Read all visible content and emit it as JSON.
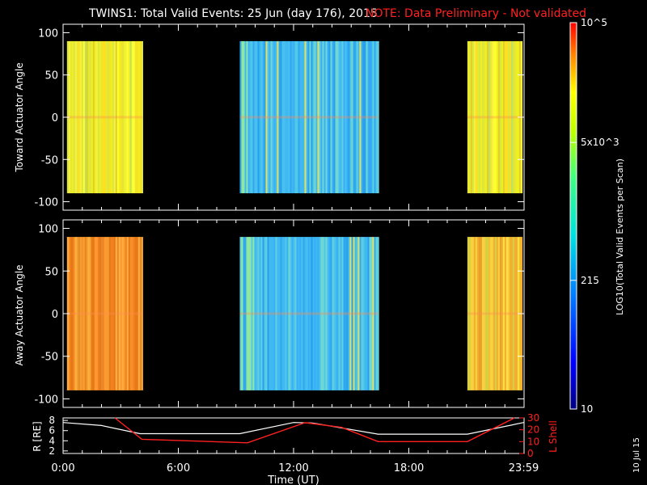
{
  "header": {
    "title": "TWINS1: Total Valid Events: 25 Jun (day 176), 2015",
    "note": "NOTE: Data Preliminary - Not validated"
  },
  "side_date": "10 Jul 15",
  "colors": {
    "note": "#ff2020",
    "l_shell_line": "#ff2020",
    "r_line": "#ffffff",
    "background": "#000000"
  },
  "chart_data": [
    {
      "type": "heatmap",
      "title": "",
      "ylabel": "Toward Actuator Angle",
      "ylim": [
        -110,
        110
      ],
      "yticks": [
        "100",
        "50",
        "0",
        "-50",
        "-100"
      ],
      "xlim": [
        0,
        24
      ],
      "data_blocks": [
        {
          "start": 0.2,
          "end": 4.15,
          "level": "yellow"
        },
        {
          "start": 9.2,
          "end": 16.4,
          "level": "cyan-blue"
        },
        {
          "start": 21.05,
          "end": 23.85,
          "level": "yellow"
        }
      ],
      "angle_range": [
        -90,
        90
      ]
    },
    {
      "type": "heatmap",
      "title": "",
      "ylabel": "Away Actuator Angle",
      "ylim": [
        -110,
        110
      ],
      "yticks": [
        "100",
        "50",
        "0",
        "-50",
        "-100"
      ],
      "xlim": [
        0,
        24
      ],
      "data_blocks": [
        {
          "start": 0.2,
          "end": 4.15,
          "level": "orange"
        },
        {
          "start": 9.2,
          "end": 16.4,
          "level": "cyan-blue"
        },
        {
          "start": 21.05,
          "end": 23.85,
          "level": "orange-yellow"
        }
      ],
      "angle_range": [
        -90,
        90
      ]
    },
    {
      "type": "line",
      "ylabel_left": "R [RE]",
      "ylabel_right": "L Shell",
      "yticks_left": [
        "8",
        "6",
        "4",
        "2"
      ],
      "yticks_right": [
        "30",
        "20",
        "10",
        "0"
      ],
      "ylim_left": [
        1.5,
        8.5
      ],
      "ylim_right": [
        0,
        30
      ],
      "xlabel": "Time (UT)",
      "xticks": [
        "0:00",
        "6:00",
        "12:00",
        "18:00",
        "23:59"
      ],
      "xtick_hours": [
        0,
        6,
        12,
        18,
        23.98
      ],
      "series": [
        {
          "name": "R",
          "color": "#ffffff",
          "x": [
            0,
            2,
            4,
            9.2,
            12,
            13,
            16.4,
            21.05,
            23.98
          ],
          "y": [
            7.6,
            7.0,
            5.4,
            5.4,
            7.6,
            7.5,
            5.3,
            5.3,
            7.6
          ]
        },
        {
          "name": "L Shell",
          "color": "#ff2020",
          "x": [
            2.7,
            4.1,
            9.6,
            12.6,
            14.5,
            16.4,
            21.05,
            23.5
          ],
          "y": [
            30,
            12,
            9,
            26,
            22,
            10,
            10,
            30
          ]
        }
      ]
    }
  ],
  "colorbar": {
    "label": "LOG10(Total Valid Events per Scan)",
    "ticks": [
      {
        "label": "10",
        "frac": 0.0
      },
      {
        "label": "215",
        "frac": 0.333
      },
      {
        "label": "5x10^3",
        "frac": 0.69
      },
      {
        "label": "10^5",
        "frac": 1.0
      }
    ]
  }
}
